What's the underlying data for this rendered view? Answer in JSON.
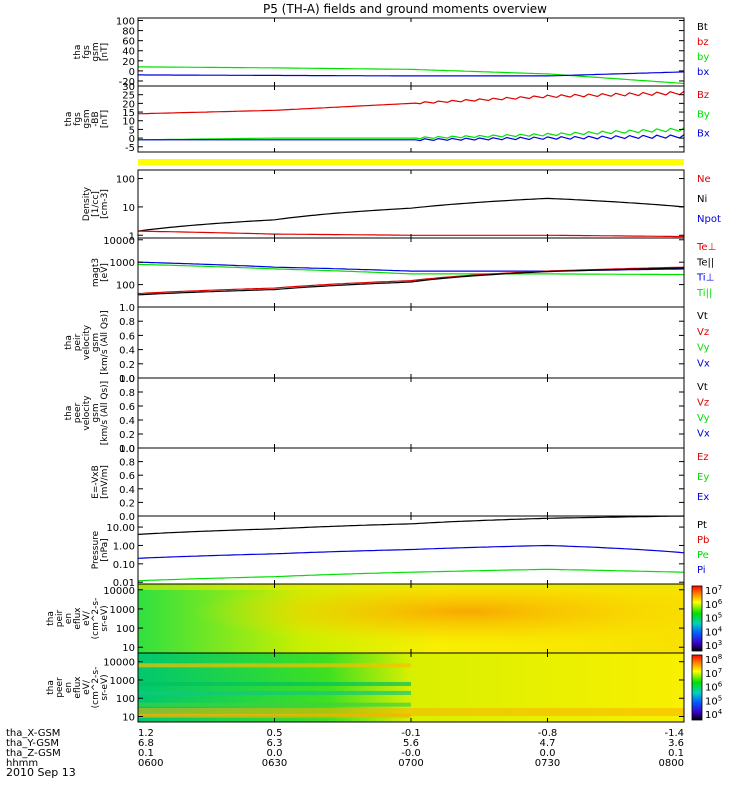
{
  "title": "P5 (TH-A) fields and ground moments overview",
  "date_label": "2010 Sep 13",
  "ephemeris": {
    "rows": [
      {
        "label": "tha_X-GSM",
        "values": [
          "1.2",
          "0.5",
          "-0.1",
          "-0.8",
          "-1.4"
        ]
      },
      {
        "label": "tha_Y-GSM",
        "values": [
          "6.8",
          "6.3",
          "5.6",
          "4.7",
          "3.6"
        ]
      },
      {
        "label": "tha_Z-GSM",
        "values": [
          "0.1",
          "0.0",
          "-0.0",
          "0.0",
          "0.1"
        ]
      },
      {
        "label": "hhmm",
        "values": [
          "0600",
          "0630",
          "0700",
          "0730",
          "0800"
        ]
      }
    ]
  },
  "colors": {
    "black": "#000000",
    "red": "#e00000",
    "green": "#00e000",
    "blue": "#0000e0",
    "yellow": "#ffff00"
  },
  "chart_data": [
    {
      "id": "fgs",
      "type": "line",
      "ylabel": [
        "tha",
        "fgs",
        "gsm",
        "[nT]"
      ],
      "ylim": [
        -30,
        105
      ],
      "yticks": [
        "-20",
        "0",
        "20",
        "40",
        "60",
        "80",
        "100"
      ],
      "ytick_values": [
        -20,
        0,
        20,
        40,
        60,
        80,
        100
      ],
      "x": [
        "0600",
        "0630",
        "0700",
        "0730",
        "0800"
      ],
      "legend": [
        {
          "name": "Bt",
          "color": "black"
        },
        {
          "name": "bz",
          "color": "red"
        },
        {
          "name": "by",
          "color": "green"
        },
        {
          "name": "bx",
          "color": "blue"
        }
      ],
      "series": [
        {
          "color": "green",
          "values": [
            8,
            6,
            3,
            -6,
            -25
          ]
        },
        {
          "color": "blue",
          "values": [
            -8,
            -9,
            -10,
            -10,
            -2
          ]
        }
      ]
    },
    {
      "id": "fgm",
      "type": "line",
      "ylabel": [
        "tha",
        "fgs",
        "gsm",
        "-BB",
        "[nT]"
      ],
      "ylim": [
        -8,
        30
      ],
      "yticks": [
        "-5",
        "0",
        "5",
        "10",
        "15",
        "20",
        "25",
        "30"
      ],
      "ytick_values": [
        -5,
        0,
        5,
        10,
        15,
        20,
        25,
        30
      ],
      "x": [
        "0600",
        "0630",
        "0700",
        "0730",
        "0800"
      ],
      "legend": [
        {
          "name": "Bz",
          "color": "red"
        },
        {
          "name": "By",
          "color": "green"
        },
        {
          "name": "Bx",
          "color": "blue"
        }
      ],
      "series": [
        {
          "color": "red",
          "values": [
            14,
            16,
            20,
            24,
            26
          ]
        },
        {
          "color": "green",
          "values": [
            -1,
            0,
            0,
            2,
            5
          ]
        },
        {
          "color": "blue",
          "values": [
            -1,
            -1,
            -1,
            0,
            1
          ]
        }
      ]
    },
    {
      "id": "density",
      "type": "line",
      "scale": "log",
      "ylabel": [
        "Density",
        "[1/cc]",
        "[cm-3]"
      ],
      "ylim": [
        0.8,
        200
      ],
      "yticks": [
        "1",
        "10",
        "100"
      ],
      "ytick_values": [
        1,
        10,
        100
      ],
      "x": [
        "0600",
        "0630",
        "0700",
        "0730",
        "0800"
      ],
      "legend": [
        {
          "name": "Ne",
          "color": "red"
        },
        {
          "name": "Ni",
          "color": "black"
        },
        {
          "name": "Npot",
          "color": "blue"
        }
      ],
      "series": [
        {
          "color": "black",
          "values": [
            1.4,
            3.5,
            9,
            20,
            10
          ]
        },
        {
          "color": "red",
          "values": [
            1.4,
            1.1,
            1.0,
            1.0,
            0.9
          ]
        }
      ]
    },
    {
      "id": "temperature",
      "type": "line",
      "scale": "log",
      "ylabel": [
        "magt3",
        "[eV]"
      ],
      "ylim": [
        10,
        12000
      ],
      "yticks": [
        "100",
        "1000",
        "10000"
      ],
      "ytick_values": [
        100,
        1000,
        10000
      ],
      "x": [
        "0600",
        "0630",
        "0700",
        "0730",
        "0800"
      ],
      "legend": [
        {
          "name": "Te⊥",
          "color": "red"
        },
        {
          "name": "Te||",
          "color": "black"
        },
        {
          "name": "Ti⊥",
          "color": "blue"
        },
        {
          "name": "Ti||",
          "color": "green"
        }
      ],
      "series": [
        {
          "color": "blue",
          "values": [
            1000,
            600,
            400,
            400,
            500
          ]
        },
        {
          "color": "green",
          "values": [
            800,
            500,
            300,
            300,
            280
          ]
        },
        {
          "color": "red",
          "values": [
            40,
            70,
            150,
            400,
            600
          ]
        },
        {
          "color": "black",
          "values": [
            35,
            60,
            130,
            380,
            550
          ]
        }
      ]
    },
    {
      "id": "peir",
      "type": "line",
      "ylabel": [
        "tha",
        "peir",
        "velocity",
        "gsm",
        "[km/s (All Qs)]"
      ],
      "ylim": [
        0,
        1
      ],
      "yticks": [
        "0.0",
        "0.2",
        "0.4",
        "0.6",
        "0.8",
        "1.0"
      ],
      "ytick_values": [
        0,
        0.2,
        0.4,
        0.6,
        0.8,
        1.0
      ],
      "x": [
        "0600",
        "0630",
        "0700",
        "0730",
        "0800"
      ],
      "legend": [
        {
          "name": "Vt",
          "color": "black"
        },
        {
          "name": "Vz",
          "color": "red"
        },
        {
          "name": "Vy",
          "color": "green"
        },
        {
          "name": "Vx",
          "color": "blue"
        }
      ],
      "series": []
    },
    {
      "id": "peer",
      "type": "line",
      "ylabel": [
        "tha",
        "peer",
        "velocity",
        "gsm",
        "[km/s (All Qs)]"
      ],
      "ylim": [
        0,
        1
      ],
      "yticks": [
        "0.0",
        "0.2",
        "0.4",
        "0.6",
        "0.8",
        "1.0"
      ],
      "ytick_values": [
        0,
        0.2,
        0.4,
        0.6,
        0.8,
        1.0
      ],
      "x": [
        "0600",
        "0630",
        "0700",
        "0730",
        "0800"
      ],
      "legend": [
        {
          "name": "Vt",
          "color": "black"
        },
        {
          "name": "Vz",
          "color": "red"
        },
        {
          "name": "Vy",
          "color": "green"
        },
        {
          "name": "Vx",
          "color": "blue"
        }
      ],
      "series": []
    },
    {
      "id": "efield",
      "type": "line",
      "ylabel": [
        "E=-VxB",
        "[mV/m]"
      ],
      "ylim": [
        0,
        1
      ],
      "yticks": [
        "0.0",
        "0.2",
        "0.4",
        "0.6",
        "0.8",
        "1.0"
      ],
      "ytick_values": [
        0,
        0.2,
        0.4,
        0.6,
        0.8,
        1.0
      ],
      "x": [
        "0600",
        "0630",
        "0700",
        "0730",
        "0800"
      ],
      "legend": [
        {
          "name": "Ez",
          "color": "red"
        },
        {
          "name": "Ey",
          "color": "green"
        },
        {
          "name": "Ex",
          "color": "blue"
        }
      ],
      "series": []
    },
    {
      "id": "pressure",
      "type": "line",
      "scale": "log",
      "ylabel": [
        "Pressure",
        "[nPa]"
      ],
      "ylim": [
        0.008,
        40
      ],
      "yticks": [
        "0.01",
        "0.10",
        "1.00",
        "10.00"
      ],
      "ytick_values": [
        0.01,
        0.1,
        1,
        10
      ],
      "x": [
        "0600",
        "0630",
        "0700",
        "0730",
        "0800"
      ],
      "legend": [
        {
          "name": "Pt",
          "color": "black"
        },
        {
          "name": "Pb",
          "color": "red"
        },
        {
          "name": "Pe",
          "color": "green"
        },
        {
          "name": "Pi",
          "color": "blue"
        }
      ],
      "series": [
        {
          "color": "black",
          "values": [
            4,
            8,
            15,
            30,
            40
          ]
        },
        {
          "color": "blue",
          "values": [
            0.2,
            0.35,
            0.6,
            1.0,
            0.4
          ]
        },
        {
          "color": "green",
          "values": [
            0.012,
            0.02,
            0.035,
            0.05,
            0.035
          ]
        }
      ]
    },
    {
      "id": "peir_eflux",
      "type": "heatmap",
      "scale": "log",
      "ylabel": [
        "tha",
        "peir",
        "en",
        "eflux",
        "eV/",
        "(cm^2-s-",
        "sr-eV)"
      ],
      "ylim": [
        5,
        20000
      ],
      "yticks": [
        "10",
        "100",
        "1000",
        "10000"
      ],
      "ytick_values": [
        10,
        100,
        1000,
        10000
      ],
      "x": [
        "0600",
        "0630",
        "0700",
        "0730",
        "0800"
      ],
      "colorbar": {
        "ticks": [
          "10^3",
          "10^4",
          "10^5",
          "10^6",
          "10^7"
        ]
      }
    },
    {
      "id": "peer_eflux",
      "type": "heatmap",
      "scale": "log",
      "ylabel": [
        "tha",
        "peer",
        "en",
        "eflux",
        "eV/",
        "(cm^2-s-",
        "sr-eV)"
      ],
      "ylim": [
        5,
        30000
      ],
      "yticks": [
        "10",
        "100",
        "1000",
        "10000"
      ],
      "ytick_values": [
        10,
        100,
        1000,
        10000
      ],
      "x": [
        "0600",
        "0630",
        "0700",
        "0730",
        "0800"
      ],
      "colorbar": {
        "ticks": [
          "10^4",
          "10^5",
          "10^6",
          "10^7",
          "10^8"
        ]
      }
    }
  ]
}
